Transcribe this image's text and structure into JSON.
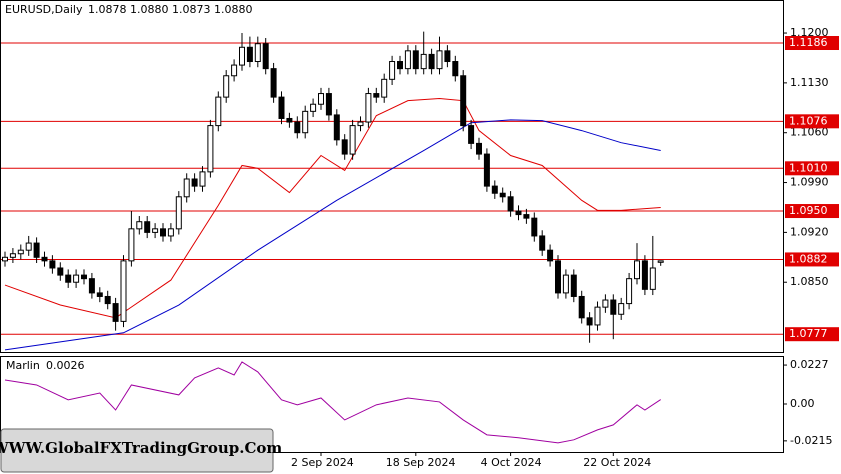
{
  "watermark": "WWW.GlobalFXTradingGroup.Com",
  "chart_data": [
    {
      "type": "candlestick",
      "title": "EURUSD,Daily",
      "quote": "1.0878 1.0880 1.0873 1.0880",
      "categories": [
        null,
        null,
        null,
        null,
        null,
        null,
        null,
        null,
        null,
        null,
        null,
        null,
        null,
        null,
        null,
        null,
        null,
        null,
        null,
        null,
        null,
        null,
        null,
        null,
        null,
        null,
        null,
        null,
        null,
        null,
        null,
        null,
        null,
        null,
        null,
        null,
        null,
        null,
        null,
        null,
        "2 Sep 2024",
        null,
        null,
        null,
        null,
        null,
        null,
        null,
        null,
        null,
        null,
        null,
        "18 Sep 2024",
        null,
        null,
        null,
        null,
        null,
        null,
        null,
        null,
        null,
        null,
        null,
        "4 Oct 2024",
        null,
        null,
        null,
        null,
        null,
        null,
        null,
        null,
        null,
        null,
        null,
        null,
        "22 Oct 2024",
        null,
        null,
        null,
        null,
        null,
        null
      ],
      "open": [
        1.088,
        1.0885,
        1.089,
        1.0895,
        1.0905,
        1.0885,
        1.088,
        1.087,
        1.086,
        1.085,
        1.086,
        1.0855,
        1.0835,
        1.083,
        1.082,
        1.0795,
        1.088,
        1.0925,
        1.0935,
        1.092,
        1.0925,
        1.0915,
        1.0925,
        1.097,
        1.0995,
        1.0985,
        1.1005,
        1.107,
        1.111,
        1.114,
        1.1155,
        1.118,
        1.116,
        1.1185,
        1.115,
        1.111,
        1.108,
        1.1075,
        1.106,
        1.109,
        1.11,
        1.1115,
        1.1085,
        1.105,
        1.103,
        1.107,
        1.1075,
        1.1115,
        1.111,
        1.1135,
        1.116,
        1.115,
        1.1175,
        1.115,
        1.117,
        1.115,
        1.1175,
        1.116,
        1.114,
        1.107,
        1.1045,
        1.103,
        1.0985,
        1.0975,
        1.097,
        1.095,
        1.0945,
        1.094,
        1.0915,
        1.0895,
        1.088,
        1.0835,
        1.086,
        1.083,
        1.08,
        1.079,
        1.0815,
        1.0825,
        1.0805,
        1.082,
        1.0855,
        1.088,
        1.084,
        1.0878
      ],
      "high": [
        1.0893,
        1.0898,
        1.0903,
        1.0915,
        1.0913,
        1.0893,
        1.0888,
        1.0878,
        1.0868,
        1.0868,
        1.0868,
        1.0863,
        1.0843,
        1.0838,
        1.0828,
        1.0888,
        1.095,
        1.0943,
        1.0943,
        1.0933,
        1.0933,
        1.0933,
        1.0978,
        1.1003,
        1.1003,
        1.1013,
        1.1078,
        1.1118,
        1.1148,
        1.1163,
        1.12,
        1.1195,
        1.1195,
        1.1193,
        1.1158,
        1.1118,
        1.1088,
        1.1083,
        1.1098,
        1.1108,
        1.1123,
        1.1123,
        1.1093,
        1.1058,
        1.1078,
        1.1083,
        1.1123,
        1.1123,
        1.1143,
        1.1168,
        1.1168,
        1.1183,
        1.1183,
        1.1202,
        1.1178,
        1.1195,
        1.1183,
        1.1168,
        1.1148,
        1.1078,
        1.1053,
        1.1038,
        1.0993,
        1.0983,
        1.0978,
        1.0958,
        1.0953,
        1.0948,
        1.0923,
        1.0903,
        1.0888,
        1.0868,
        1.0868,
        1.0838,
        1.0808,
        1.0823,
        1.0833,
        1.0833,
        1.0828,
        1.0863,
        1.0905,
        1.0888,
        1.0915,
        1.088
      ],
      "low": [
        1.0872,
        1.0877,
        1.0882,
        1.0887,
        1.0877,
        1.0872,
        1.0862,
        1.0852,
        1.0842,
        1.0842,
        1.0847,
        1.0827,
        1.0822,
        1.0812,
        1.0782,
        1.0787,
        1.0872,
        1.0917,
        1.0912,
        1.0912,
        1.0907,
        1.0907,
        1.0917,
        1.0962,
        1.0977,
        1.0977,
        1.0997,
        1.1062,
        1.1102,
        1.1132,
        1.1147,
        1.1152,
        1.1152,
        1.1142,
        1.1102,
        1.1072,
        1.1067,
        1.1052,
        1.1052,
        1.1082,
        1.1092,
        1.1077,
        1.1042,
        1.1022,
        1.1022,
        1.1062,
        1.1067,
        1.1102,
        1.1102,
        1.1127,
        1.1142,
        1.1142,
        1.1142,
        1.1142,
        1.1142,
        1.1142,
        1.1152,
        1.1132,
        1.1062,
        1.1037,
        1.1022,
        1.0977,
        1.0967,
        1.0962,
        1.0942,
        1.0937,
        1.0932,
        1.0907,
        1.0887,
        1.0872,
        1.0827,
        1.0827,
        1.0822,
        1.0792,
        1.0765,
        1.0782,
        1.0807,
        1.077,
        1.0797,
        1.0812,
        1.0847,
        1.0832,
        1.0832,
        1.0873
      ],
      "close": [
        1.0885,
        1.089,
        1.0895,
        1.0905,
        1.0885,
        1.088,
        1.087,
        1.086,
        1.085,
        1.086,
        1.0855,
        1.0835,
        1.083,
        1.082,
        1.0795,
        1.088,
        1.0925,
        1.0935,
        1.092,
        1.0925,
        1.0915,
        1.0925,
        1.097,
        1.0995,
        1.0985,
        1.1005,
        1.107,
        1.111,
        1.114,
        1.1155,
        1.118,
        1.116,
        1.1185,
        1.115,
        1.111,
        1.108,
        1.1075,
        1.106,
        1.109,
        1.11,
        1.1115,
        1.1085,
        1.105,
        1.103,
        1.107,
        1.1075,
        1.1115,
        1.111,
        1.1135,
        1.116,
        1.115,
        1.1175,
        1.115,
        1.117,
        1.115,
        1.1175,
        1.116,
        1.114,
        1.107,
        1.1045,
        1.103,
        1.0985,
        1.0975,
        1.097,
        1.095,
        1.0945,
        1.094,
        1.0915,
        1.0895,
        1.088,
        1.0835,
        1.086,
        1.083,
        1.08,
        1.079,
        1.0815,
        1.0825,
        1.0805,
        1.082,
        1.0855,
        1.088,
        1.084,
        1.087,
        1.088
      ],
      "ylim": [
        1.0752,
        1.1245
      ],
      "yticks": [
        {
          "value": 1.12,
          "label": "1.1200"
        },
        {
          "value": 1.113,
          "label": "1.1130"
        },
        {
          "value": 1.106,
          "label": "1.1060"
        },
        {
          "value": 1.099,
          "label": "1.0990"
        },
        {
          "value": 1.092,
          "label": "1.0920"
        },
        {
          "value": 1.085,
          "label": "1.0850"
        }
      ],
      "levels": [
        {
          "value": 1.1186,
          "label": "1.1186"
        },
        {
          "value": 1.1076,
          "label": "1.1076"
        },
        {
          "value": 1.101,
          "label": "1.1010"
        },
        {
          "value": 1.095,
          "label": "1.0950"
        },
        {
          "value": 1.0882,
          "label": "1.0882"
        },
        {
          "value": 1.0777,
          "label": "1.0777"
        }
      ],
      "level_color": "#e00000",
      "lines": [
        {
          "color": "#e00000",
          "x": [
            0,
            7,
            14,
            21,
            27,
            30,
            32,
            36,
            40,
            43,
            47,
            51,
            55,
            58,
            60,
            64,
            68,
            73,
            75,
            78,
            83
          ],
          "values": [
            1.0846,
            1.0818,
            1.08,
            1.0853,
            1.0958,
            1.1014,
            1.101,
            1.0976,
            1.1028,
            1.1007,
            1.1084,
            1.1105,
            1.1108,
            1.1105,
            1.1063,
            1.1028,
            1.1014,
            1.0965,
            1.0951,
            1.0951,
            1.0955
          ]
        },
        {
          "color": "#0000c8",
          "x": [
            0,
            15,
            22,
            32,
            42,
            53,
            59,
            64,
            68,
            73,
            78,
            83
          ],
          "values": [
            1.0755,
            1.0779,
            1.0818,
            1.0895,
            1.0965,
            1.1035,
            1.1074,
            1.1078,
            1.1077,
            1.1063,
            1.1046,
            1.1035
          ]
        }
      ]
    },
    {
      "type": "line",
      "title": "Marlin",
      "last": 0.0026,
      "color": "#a000a0",
      "x": [
        0,
        4,
        8,
        12,
        14,
        16,
        22,
        24,
        27,
        29,
        30,
        32,
        35,
        37,
        40,
        43,
        47,
        51,
        55,
        58,
        61,
        65,
        70,
        72,
        75,
        77,
        80,
        81,
        83
      ],
      "values": [
        0.014,
        0.0111,
        0.0024,
        0.0064,
        -0.0035,
        0.0111,
        0.0053,
        0.0152,
        0.021,
        0.0169,
        0.0245,
        0.0187,
        0.0024,
        -0.0005,
        0.0035,
        -0.0093,
        -0.0005,
        0.0035,
        0.0012,
        -0.0093,
        -0.018,
        -0.0197,
        -0.0227,
        -0.0209,
        -0.0151,
        -0.0122,
        -0.0005,
        -0.0035,
        0.0026
      ],
      "ylim": [
        -0.028,
        0.0274
      ],
      "yticks": [
        0.0227,
        {
          "value": 0,
          "label": "0.00"
        },
        -0.0215
      ]
    }
  ]
}
